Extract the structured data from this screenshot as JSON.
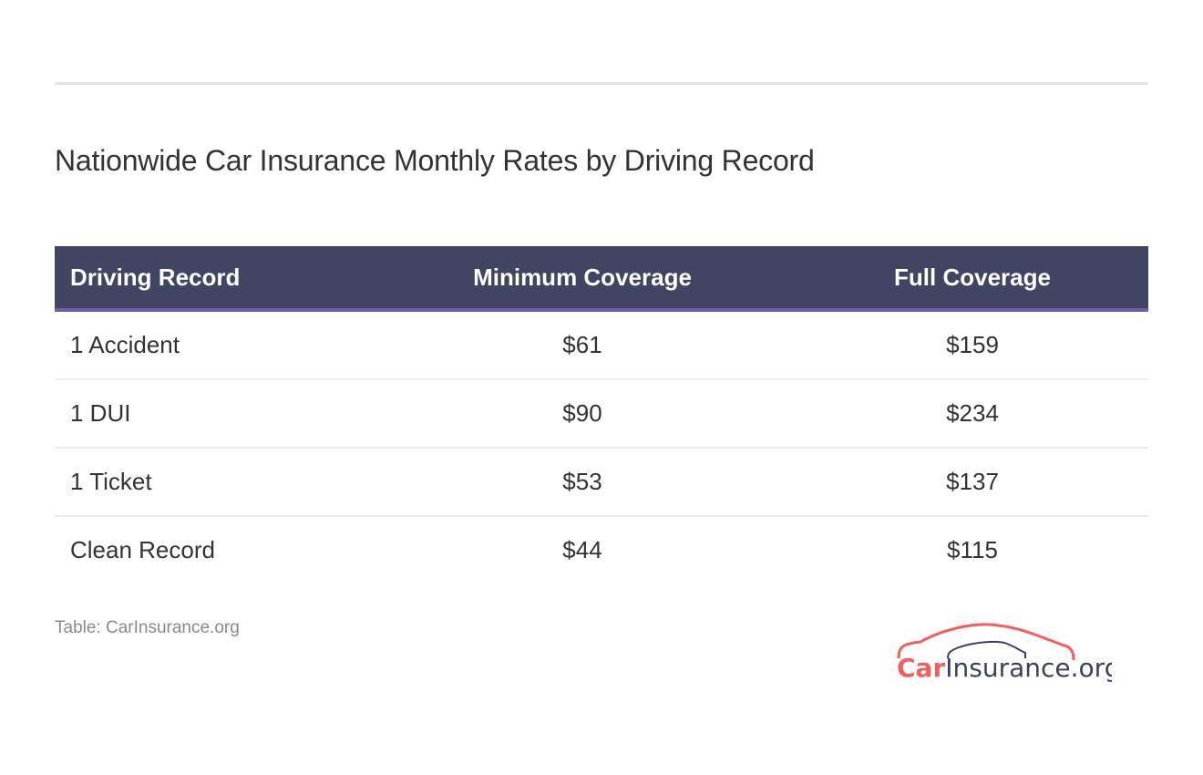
{
  "title": "Nationwide Car Insurance Monthly Rates by Driving Record",
  "table": {
    "headers": [
      "Driving Record",
      "Minimum Coverage",
      "Full Coverage"
    ],
    "rows": [
      [
        "1 Accident",
        "$61",
        "$159"
      ],
      [
        "1 DUI",
        "$90",
        "$234"
      ],
      [
        "1 Ticket",
        "$53",
        "$137"
      ],
      [
        "Clean Record",
        "$44",
        "$115"
      ]
    ]
  },
  "source": "Table: CarInsurance.org",
  "logo": {
    "text_car": "Car",
    "text_rest": "Insurance.org",
    "accent": "#f0605d",
    "dark": "#3d4160"
  },
  "colors": {
    "header_bg": "#414462",
    "header_border": "#6b5fa8"
  }
}
